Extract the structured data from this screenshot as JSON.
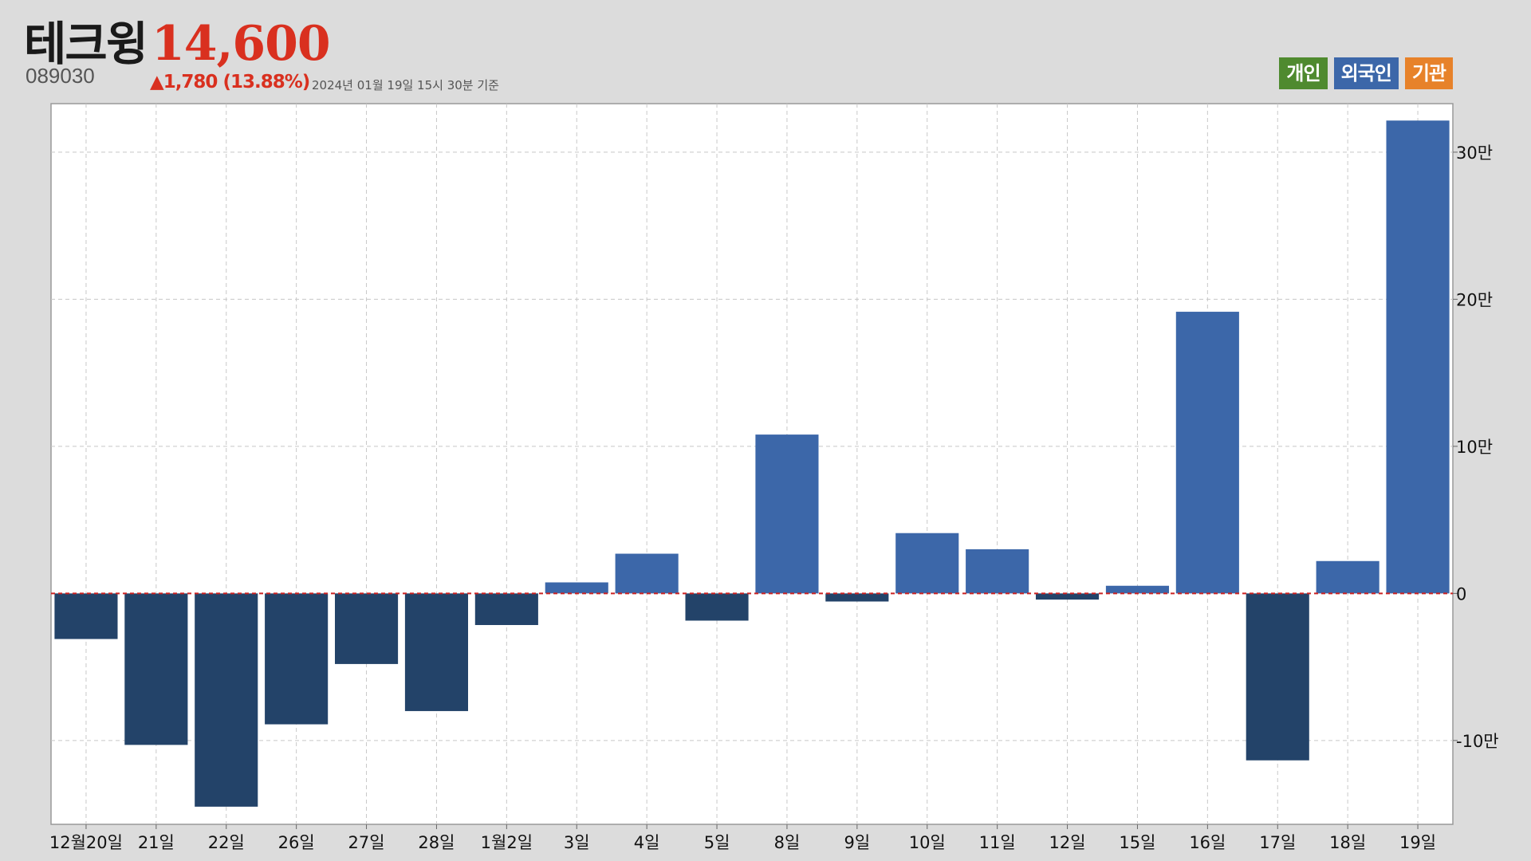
{
  "header": {
    "name": "테크윙",
    "price": "14,600",
    "code": "089030",
    "change": "▲1,780 (13.88%)",
    "timestamp": "2024년 01월 19일 15시 30분 기준"
  },
  "legend": [
    {
      "label": "개인",
      "color": "#4f8a2f"
    },
    {
      "label": "외국인",
      "color": "#3c67a9"
    },
    {
      "label": "기관",
      "color": "#e7822a"
    }
  ],
  "chart_data": {
    "type": "bar",
    "categories": [
      "12월20일",
      "21일",
      "22일",
      "26일",
      "27일",
      "28일",
      "1월2일",
      "3일",
      "4일",
      "5일",
      "8일",
      "9일",
      "10일",
      "11일",
      "12일",
      "15일",
      "16일",
      "17일",
      "18일",
      "19일"
    ],
    "series": [
      {
        "name": "외국인",
        "values": [
          -31000,
          -103000,
          -145000,
          -89000,
          -48000,
          -80000,
          -21500,
          7500,
          27000,
          -18500,
          108000,
          -5500,
          41000,
          30000,
          -4200,
          5200,
          191500,
          -113500,
          22000,
          321500
        ]
      }
    ],
    "colors": {
      "positive": "#3c67a9",
      "negative": "#234369",
      "zero_line": "#cc2222"
    },
    "yticks": [
      {
        "value": 300000,
        "label": "30만"
      },
      {
        "value": 200000,
        "label": "20만"
      },
      {
        "value": 100000,
        "label": "10만"
      },
      {
        "value": 0,
        "label": "0"
      },
      {
        "value": -100000,
        "label": "-10만"
      }
    ],
    "ylim": [
      -157000,
      333000
    ],
    "grid": true,
    "y_axis_position": "right"
  }
}
